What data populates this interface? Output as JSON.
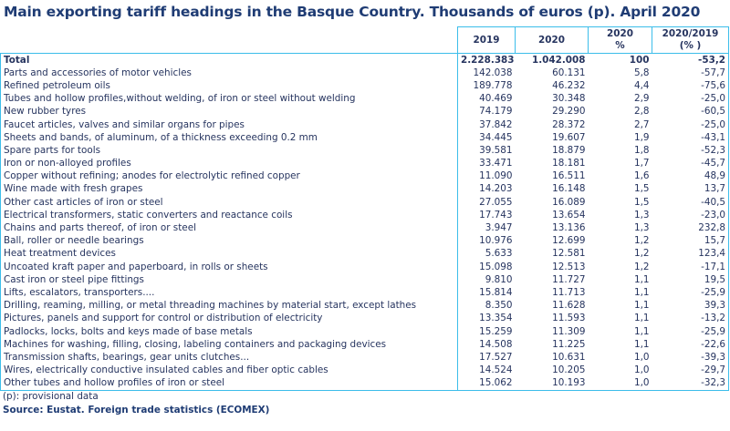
{
  "title": "Main exporting tariff headings in the Basque Country. Thousands of euros (p). April 2020",
  "columns": [
    "2019",
    "2020",
    "2020\n%",
    "2020/2019\n(% )"
  ],
  "total": {
    "label": "Total",
    "v2019": "2.228.383",
    "v2020": "1.042.008",
    "pct": "100",
    "change": "-53,2"
  },
  "rows": [
    [
      "Parts and accessories of motor vehicles",
      "142.038",
      "60.131",
      "5,8",
      "-57,7"
    ],
    [
      "Refined petroleum oils",
      "189.778",
      "46.232",
      "4,4",
      "-75,6"
    ],
    [
      "Tubes and hollow profiles,without welding, of iron or steel without welding",
      "40.469",
      "30.348",
      "2,9",
      "-25,0"
    ],
    [
      "New rubber tyres",
      "74.179",
      "29.290",
      "2,8",
      "-60,5"
    ],
    [
      "Faucet articles, valves and similar organs for pipes",
      "37.842",
      "28.372",
      "2,7",
      "-25,0"
    ],
    [
      "Sheets and bands, of aluminum, of a thickness exceeding 0.2 mm",
      "34.445",
      "19.607",
      "1,9",
      "-43,1"
    ],
    [
      "Spare parts for tools",
      "39.581",
      "18.879",
      "1,8",
      "-52,3"
    ],
    [
      "Iron or non-alloyed profiles",
      "33.471",
      "18.181",
      "1,7",
      "-45,7"
    ],
    [
      "Copper without refining; anodes for electrolytic refined copper",
      "11.090",
      "16.511",
      "1,6",
      "48,9"
    ],
    [
      "Wine made with fresh grapes",
      "14.203",
      "16.148",
      "1,5",
      "13,7"
    ],
    [
      "Other cast articles of iron or steel",
      "27.055",
      "16.089",
      "1,5",
      "-40,5"
    ],
    [
      "Electrical transformers, static converters and reactance coils",
      "17.743",
      "13.654",
      "1,3",
      "-23,0"
    ],
    [
      "Chains and parts thereof, of iron or steel",
      "3.947",
      "13.136",
      "1,3",
      "232,8"
    ],
    [
      "Ball, roller or needle bearings",
      "10.976",
      "12.699",
      "1,2",
      "15,7"
    ],
    [
      "Heat treatment devices",
      "5.633",
      "12.581",
      "1,2",
      "123,4"
    ],
    [
      "Uncoated kraft paper and paperboard, in rolls or sheets",
      "15.098",
      "12.513",
      "1,2",
      "-17,1"
    ],
    [
      "Cast iron or steel pipe fittings",
      "9.810",
      "11.727",
      "1,1",
      "19,5"
    ],
    [
      "Lifts, escalators, transporters....",
      "15.814",
      "11.713",
      "1,1",
      "-25,9"
    ],
    [
      "Drilling, reaming, milling, or metal threading machines by material start, except lathes",
      "8.350",
      "11.628",
      "1,1",
      "39,3"
    ],
    [
      "Pictures, panels and support for control or distribution of electricity",
      "13.354",
      "11.593",
      "1,1",
      "-13,2"
    ],
    [
      "Padlocks, locks, bolts and keys made of base metals",
      "15.259",
      "11.309",
      "1,1",
      "-25,9"
    ],
    [
      "Machines for washing, filling, closing, labeling containers and packaging devices",
      "14.508",
      "11.225",
      "1,1",
      "-22,6"
    ],
    [
      "Transmission shafts, bearings, gear units clutches...",
      "17.527",
      "10.631",
      "1,0",
      "-39,3"
    ],
    [
      "Wires, electrically conductive insulated cables and fiber optic cables",
      "14.524",
      "10.205",
      "1,0",
      "-29,7"
    ],
    [
      "Other tubes and hollow profiles of iron or steel",
      "15.062",
      "10.193",
      "1,0",
      "-32,3"
    ]
  ],
  "note": "(p): provisional data",
  "source": "Source: Eustat. Foreign trade statistics (ECOMEX)",
  "colors": {
    "text": "#26345f",
    "title": "#1f3c74",
    "border": "#3cbdea"
  }
}
